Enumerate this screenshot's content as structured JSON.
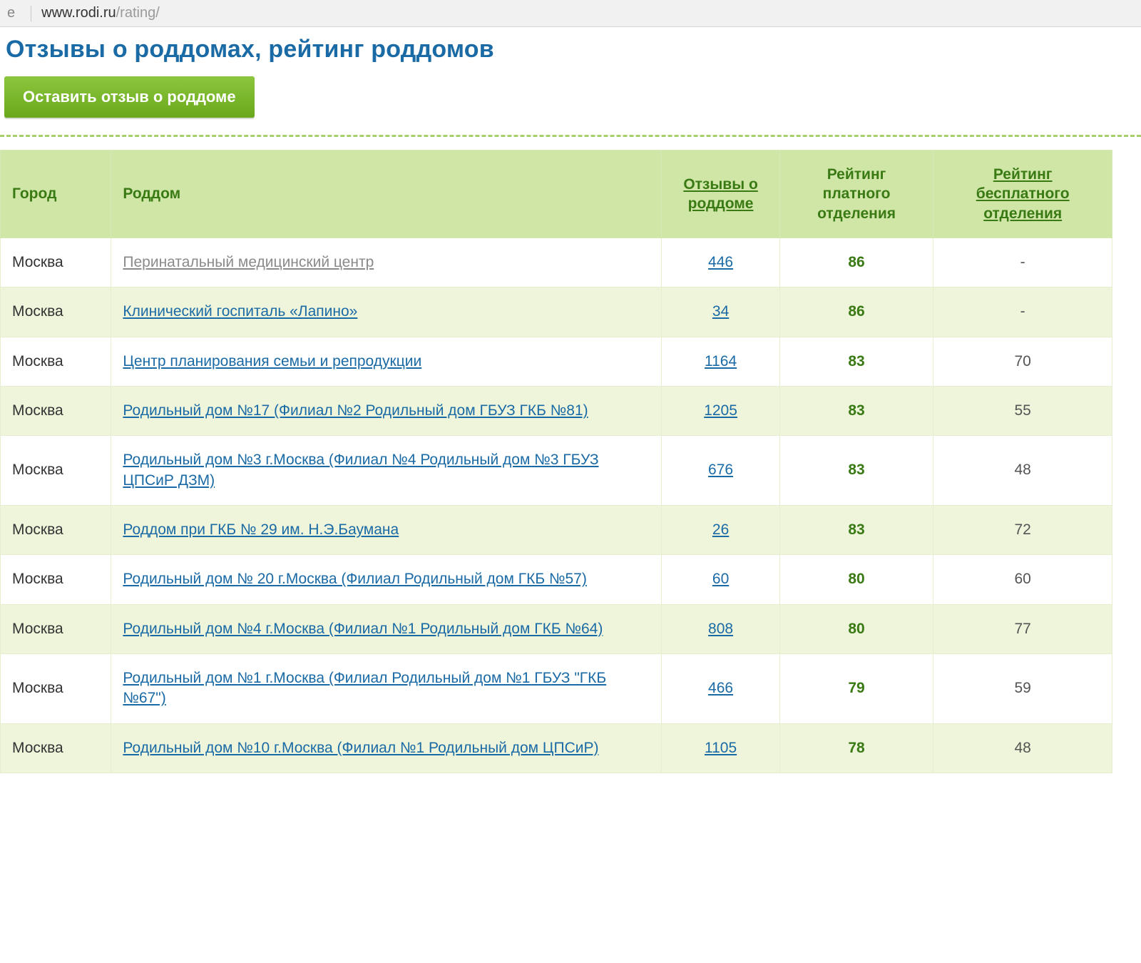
{
  "browser": {
    "url_host": "www.rodi.ru",
    "url_path": "/rating/"
  },
  "header": {
    "title_cut": "Отзывы о роддомах, рейтинг роддомов",
    "leave_review_button": "Оставить отзыв о роддоме"
  },
  "table": {
    "columns": {
      "city": "Город",
      "name": "Роддом",
      "reviews": "Отзывы о роддоме",
      "paid": "Рейтинг платного отделения",
      "free": "Рейтинг бесплатного отделения"
    },
    "rows": [
      {
        "city": "Москва",
        "name": "Перинатальный медицинский центр",
        "visited": true,
        "reviews": "446",
        "paid": "86",
        "free": "-"
      },
      {
        "city": "Москва",
        "name": "Клинический госпиталь «Лапино»",
        "visited": false,
        "reviews": "34",
        "paid": "86",
        "free": "-"
      },
      {
        "city": "Москва",
        "name": "Центр планирования семьи и репродукции",
        "visited": false,
        "reviews": "1164",
        "paid": "83",
        "free": "70"
      },
      {
        "city": "Москва",
        "name": "Родильный дом №17 (Филиал №2 Родильный дом ГБУЗ ГКБ №81)",
        "visited": false,
        "reviews": "1205",
        "paid": "83",
        "free": "55"
      },
      {
        "city": "Москва",
        "name": "Родильный дом №3 г.Москва (Филиал №4 Родильный дом №3 ГБУЗ ЦПСиР ДЗМ)",
        "visited": false,
        "reviews": "676",
        "paid": "83",
        "free": "48"
      },
      {
        "city": "Москва",
        "name": "Роддом при ГКБ № 29 им. Н.Э.Баумана",
        "visited": false,
        "reviews": "26",
        "paid": "83",
        "free": "72"
      },
      {
        "city": "Москва",
        "name": "Родильный дом № 20 г.Москва (Филиал Родильный дом ГКБ №57)",
        "visited": false,
        "reviews": "60",
        "paid": "80",
        "free": "60"
      },
      {
        "city": "Москва",
        "name": "Родильный дом №4 г.Москва (Филиал №1 Родильный дом ГКБ №64)",
        "visited": false,
        "reviews": "808",
        "paid": "80",
        "free": "77"
      },
      {
        "city": "Москва",
        "name": "Родильный дом №1 г.Москва (Филиал Родильный дом №1 ГБУЗ \"ГКБ №67\")",
        "visited": false,
        "reviews": "466",
        "paid": "79",
        "free": "59"
      },
      {
        "city": "Москва",
        "name": "Родильный дом №10 г.Москва (Филиал №1 Родильный дом ЦПСиР)",
        "visited": false,
        "reviews": "1105",
        "paid": "78",
        "free": "48"
      }
    ]
  },
  "style": {
    "header_green": "#cfe6a6",
    "row_alt_green": "#eef5db",
    "link_blue": "#1a6aa5",
    "text_green": "#3a7a14",
    "button_green": "#79b71f",
    "dash_color": "#a7cf6e"
  }
}
